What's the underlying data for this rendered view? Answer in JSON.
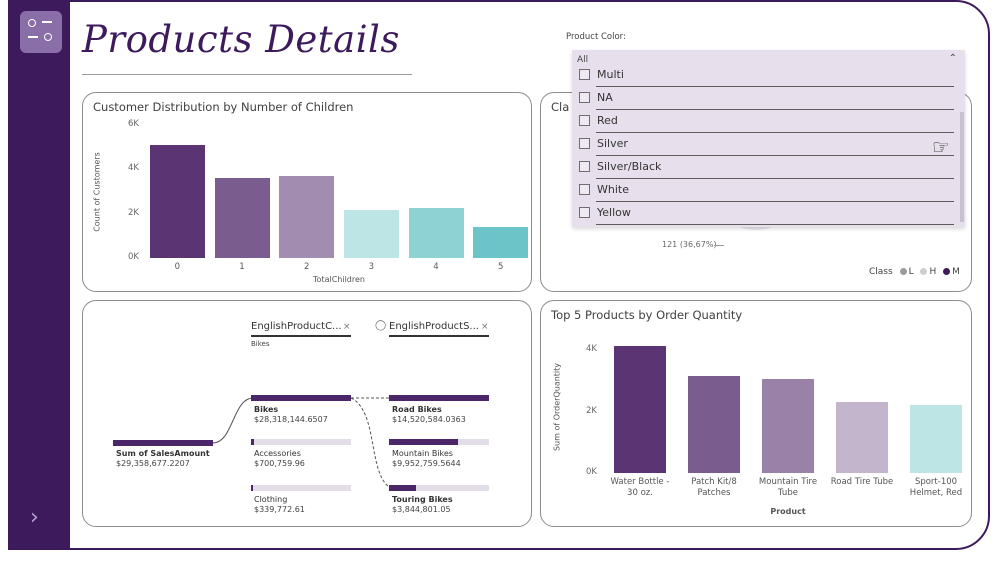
{
  "page": {
    "title": "Products Details"
  },
  "colors": {
    "rail": "#3d1a5c",
    "dark_purple": "#4b2669",
    "mid_purple": "#7a5c8e",
    "light_purple": "#a28cb0",
    "pale_teal": "#bde5e6",
    "teal": "#8ed2d3",
    "dark_teal": "#6cc4c8"
  },
  "product_color_slicer": {
    "label": "Product Color:",
    "selected": "All",
    "options": [
      "Multi",
      "NA",
      "Red",
      "Silver",
      "Silver/Black",
      "White",
      "Yellow"
    ]
  },
  "class_card": {
    "title_partial": "Cla",
    "data_label": "121 (36,67%)",
    "legend_title": "Class",
    "legend": [
      {
        "label": "L",
        "color": "#9b9b9b"
      },
      {
        "label": "H",
        "color": "#cfcfcf"
      },
      {
        "label": "M",
        "color": "#3d1a5c"
      }
    ]
  },
  "children_chart": {
    "title": "Customer Distribution by Number of Children",
    "chart_data": {
      "type": "bar",
      "title": "Customer Distribution by Number of Children",
      "xlabel": "TotalChildren",
      "ylabel": "Count of Customers",
      "categories": [
        "0",
        "1",
        "2",
        "3",
        "4",
        "5"
      ],
      "values": [
        5100,
        3600,
        3700,
        2150,
        2250,
        1400
      ],
      "yticks": [
        "0K",
        "2K",
        "4K",
        "6K"
      ],
      "ylim": [
        0,
        6000
      ],
      "colors": [
        "#5a3473",
        "#7a5c8e",
        "#a28cb0",
        "#bde5e6",
        "#8ed2d3",
        "#6cc4c8"
      ]
    }
  },
  "top_products_chart": {
    "title": "Top 5 Products by Order Quantity",
    "chart_data": {
      "type": "bar",
      "title": "Top 5 Products by Order Quantity",
      "xlabel": "Product",
      "ylabel": "Sum of OrderQuantity",
      "categories": [
        "Water Bottle - 30 oz.",
        "Patch Kit/8 Patches",
        "Mountain Tire Tube",
        "Road Tire Tube",
        "Sport-100 Helmet, Red"
      ],
      "values": [
        4150,
        3150,
        3050,
        2320,
        2200
      ],
      "yticks": [
        "0K",
        "2K",
        "4K"
      ],
      "ylim": [
        0,
        4300
      ],
      "colors": [
        "#5a3473",
        "#7a5c8e",
        "#9981a8",
        "#c3b6cc",
        "#bde5e6"
      ]
    }
  },
  "decomposition_tree": {
    "level1_header": "EnglishProductC...",
    "level1_filter": "Bikes",
    "level2_header": "EnglishProductS...",
    "root": {
      "label": "Sum of SalesAmount",
      "value": "$29,358,677.2207"
    },
    "level1": [
      {
        "label": "Bikes",
        "value": "$28,318,144.6507",
        "fraction": 1.0
      },
      {
        "label": "Accessories",
        "value": "$700,759.96",
        "fraction": 0.025
      },
      {
        "label": "Clothing",
        "value": "$339,772.61",
        "fraction": 0.012
      }
    ],
    "level2": [
      {
        "label": "Road Bikes",
        "value": "$14,520,584.0363",
        "fraction": 1.0
      },
      {
        "label": "Mountain Bikes",
        "value": "$9,952,759.5644",
        "fraction": 0.685
      },
      {
        "label": "Touring Bikes",
        "value": "$3,844,801.05",
        "fraction": 0.265
      }
    ]
  }
}
